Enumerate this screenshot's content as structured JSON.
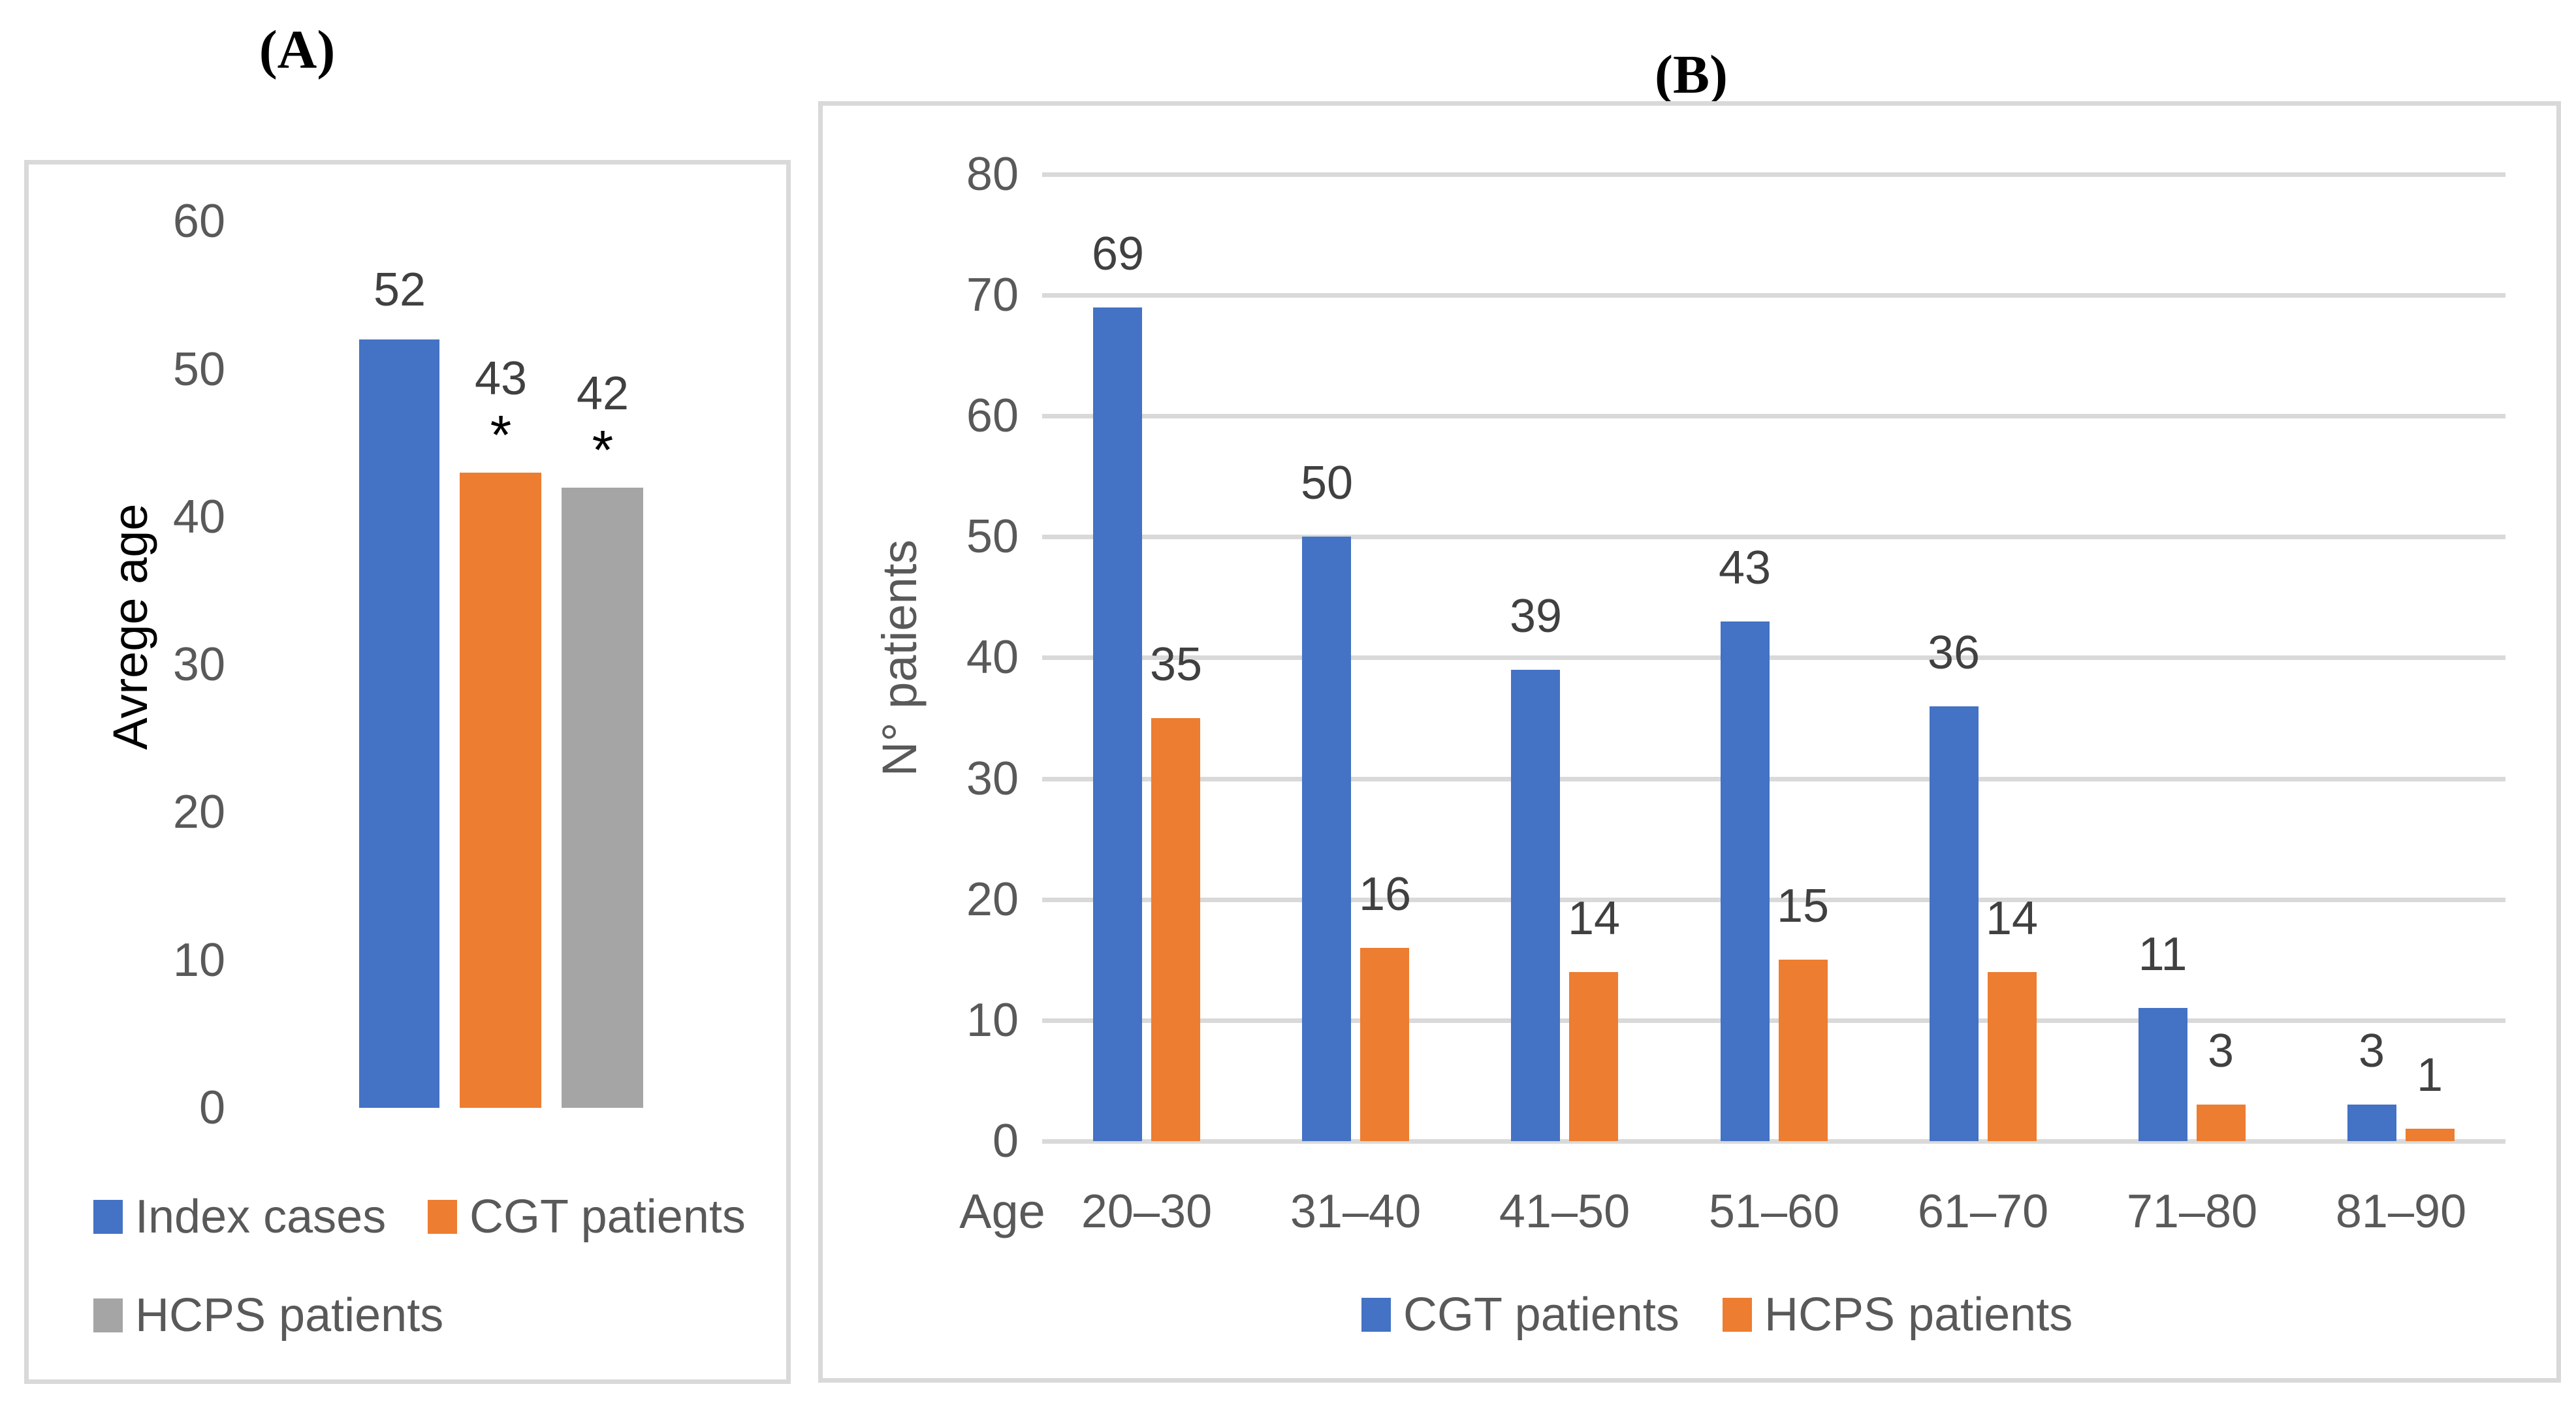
{
  "titles": {
    "panel_a": "(A)",
    "panel_b": "(B)"
  },
  "colors": {
    "blue": "#4472C4",
    "orange": "#ED7D31",
    "gray": "#A5A5A5",
    "gridline": "#D9D9D9",
    "tick_text": "#595959",
    "value_text": "#404040",
    "axis_title_a": "#000000",
    "axis_title_b": "#595959"
  },
  "chart_data": [
    {
      "type": "bar",
      "panel": "A",
      "title": "(A)",
      "ylabel": "Avrege age",
      "xlabel": "",
      "ylim": [
        0,
        60
      ],
      "ytick_step": 10,
      "grid": false,
      "categories": [
        "Index cases",
        "CGT patients",
        "HCPS patients"
      ],
      "values": [
        52,
        43,
        42
      ],
      "annotations": [
        "",
        "*",
        "*"
      ],
      "bar_colors": [
        "#4472C4",
        "#ED7D31",
        "#A5A5A5"
      ],
      "legend": [
        {
          "label": "Index cases",
          "color": "#4472C4"
        },
        {
          "label": "CGT patients",
          "color": "#ED7D31"
        },
        {
          "label": "HCPS patients",
          "color": "#A5A5A5"
        }
      ],
      "legend_position": "bottom"
    },
    {
      "type": "bar",
      "panel": "B",
      "title": "(B)",
      "ylabel": "N° patients",
      "xlabel": "Age",
      "ylim": [
        0,
        80
      ],
      "ytick_step": 10,
      "grid": true,
      "categories": [
        "20–30",
        "31–40",
        "41–50",
        "51–60",
        "61–70",
        "71–80",
        "81–90"
      ],
      "series": [
        {
          "name": "CGT patients",
          "color": "#4472C4",
          "values": [
            69,
            50,
            39,
            43,
            36,
            11,
            3
          ]
        },
        {
          "name": "HCPS patients",
          "color": "#ED7D31",
          "values": [
            35,
            16,
            14,
            15,
            14,
            3,
            1
          ]
        }
      ],
      "legend": [
        {
          "label": "CGT patients",
          "color": "#4472C4"
        },
        {
          "label": "HCPS patients",
          "color": "#ED7D31"
        }
      ],
      "legend_position": "bottom"
    }
  ]
}
